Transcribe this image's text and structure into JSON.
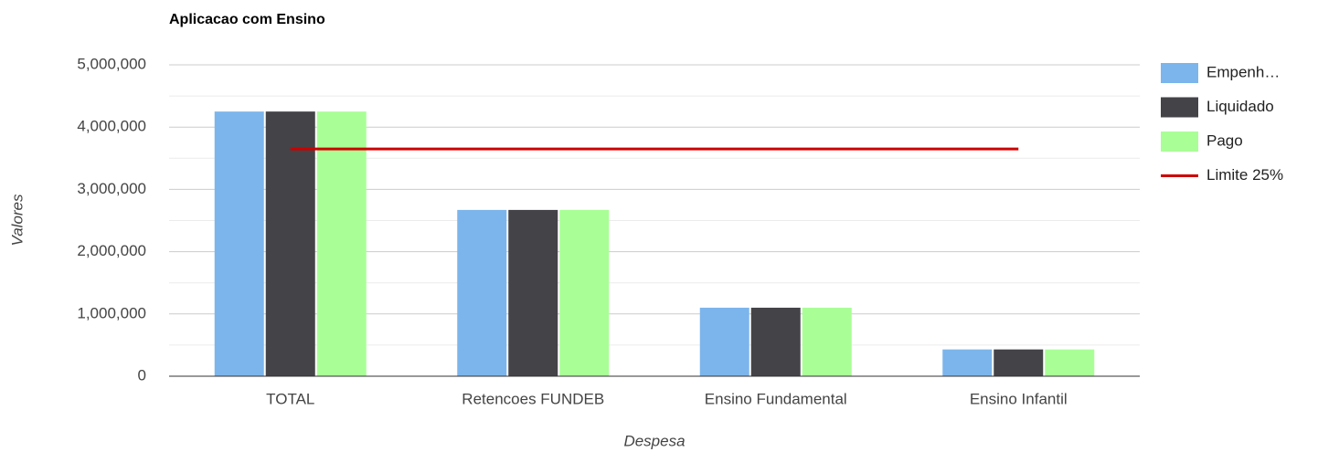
{
  "chart_data": {
    "type": "combo",
    "title": "Aplicacao com Ensino",
    "x_label": "Despesa",
    "y_label": "Valores",
    "categories": [
      "TOTAL",
      "Retencoes FUNDEB",
      "Ensino Fundamental",
      "Ensino Infantil"
    ],
    "series": [
      {
        "name": "Empenh…",
        "type": "bar",
        "color": "#7cb5ec",
        "values": [
          4250000,
          2670000,
          1100000,
          430000
        ]
      },
      {
        "name": "Liquidado",
        "type": "bar",
        "color": "#434348",
        "values": [
          4250000,
          2670000,
          1100000,
          430000
        ]
      },
      {
        "name": "Pago",
        "type": "bar",
        "color": "#a9ff96",
        "values": [
          4250000,
          2670000,
          1100000,
          430000
        ]
      },
      {
        "name": "Limite 25%",
        "type": "line",
        "color": "#cc0000",
        "values": [
          3650000,
          3650000,
          3650000,
          3650000
        ]
      }
    ],
    "ylim": [
      0,
      5000000
    ],
    "yticks": [
      {
        "value": 0,
        "label": "0"
      },
      {
        "value": 1000000,
        "label": "1,000,000"
      },
      {
        "value": 2000000,
        "label": "2,000,000"
      },
      {
        "value": 3000000,
        "label": "3,000,000"
      },
      {
        "value": 4000000,
        "label": "4,000,000"
      },
      {
        "value": 5000000,
        "label": "5,000,000"
      }
    ],
    "minor_yticks": [
      500000,
      1500000,
      2500000,
      3500000,
      4500000
    ],
    "grid": true,
    "legend": "right"
  }
}
